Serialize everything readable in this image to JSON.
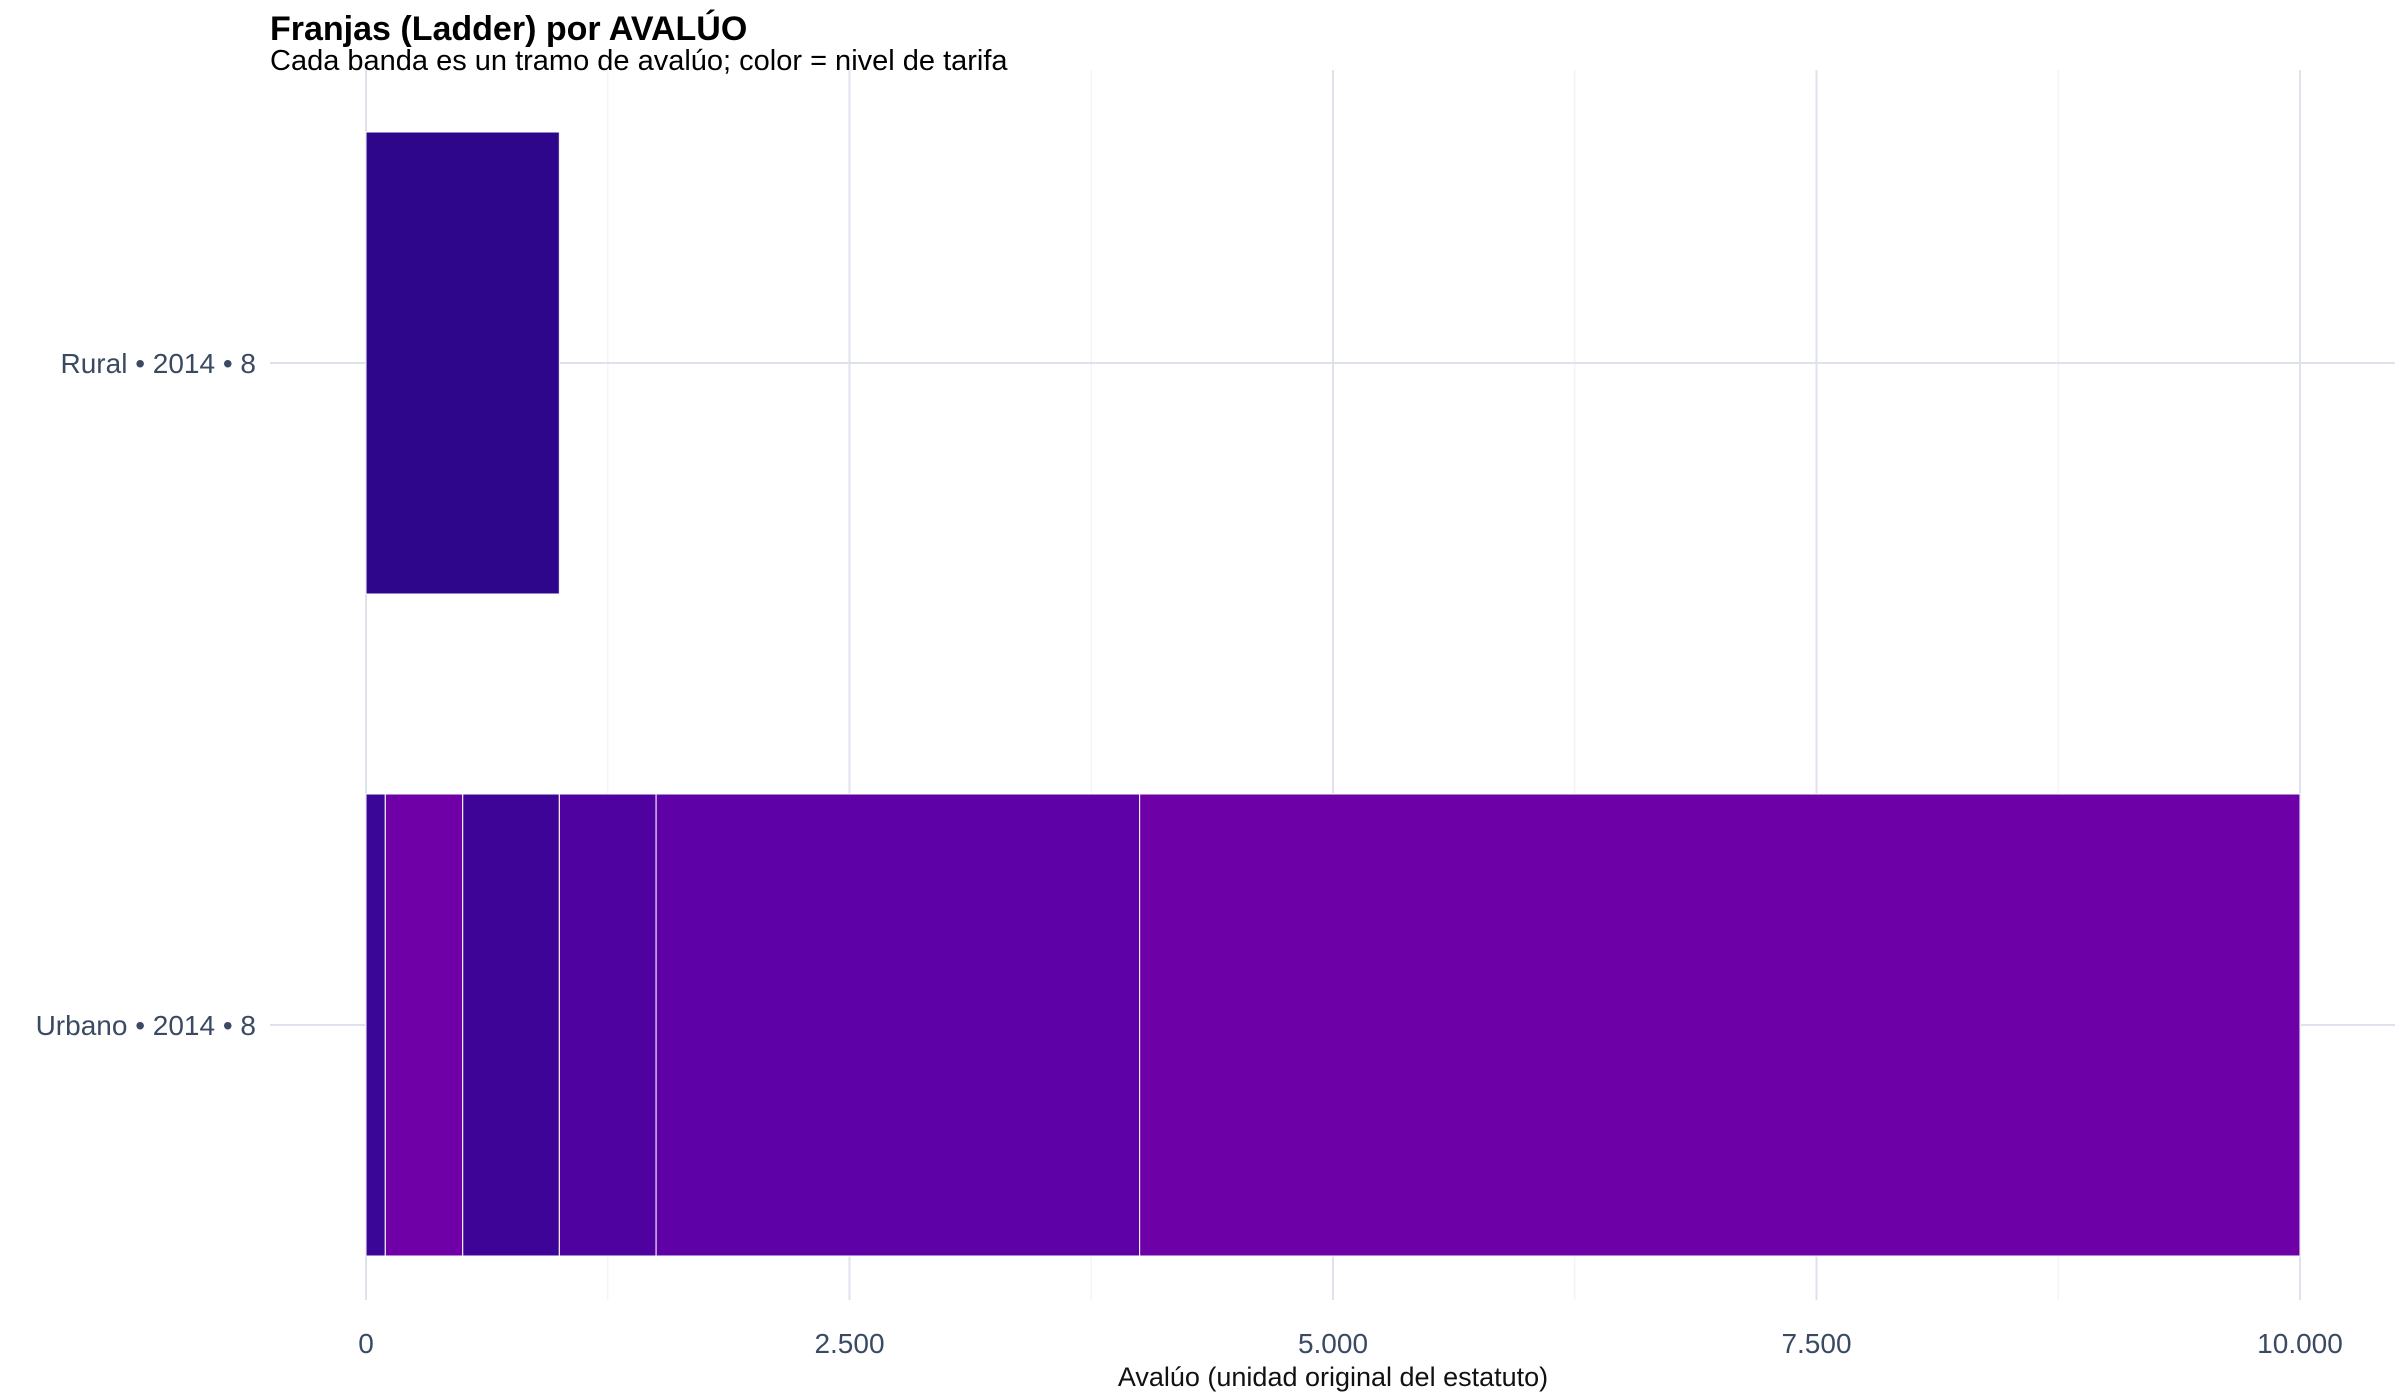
{
  "chart_data": {
    "type": "bar",
    "orientation": "horizontal-stacked",
    "title": "Franjas (Ladder) por AVALÚO",
    "subtitle": "Cada banda es un tramo de avalúo; color = nivel de tarifa",
    "xlabel": "Avalúo (unidad original del estatuto)",
    "ylabel": "",
    "xlim": [
      -250,
      10500
    ],
    "xticks": [
      0,
      2500,
      5000,
      7500,
      10000
    ],
    "xtick_labels": [
      "0",
      "2.500",
      "5.000",
      "7.500",
      "10.000"
    ],
    "grid": true,
    "legend": "none",
    "categories": [
      "Rural • 2014 • 8",
      "Urbano • 2014 • 8"
    ],
    "bands": [
      {
        "category": "Rural • 2014 • 8",
        "from": 0,
        "to": 1000,
        "color": "#2e068c"
      },
      {
        "category": "Urbano • 2014 • 8",
        "from": 0,
        "to": 100,
        "color": "#3a0698"
      },
      {
        "category": "Urbano • 2014 • 8",
        "from": 100,
        "to": 500,
        "color": "#6f00a8"
      },
      {
        "category": "Urbano • 2014 • 8",
        "from": 500,
        "to": 1000,
        "color": "#3e0497"
      },
      {
        "category": "Urbano • 2014 • 8",
        "from": 1000,
        "to": 1500,
        "color": "#5002a0"
      },
      {
        "category": "Urbano • 2014 • 8",
        "from": 1500,
        "to": 4000,
        "color": "#5e01a6"
      },
      {
        "category": "Urbano • 2014 • 8",
        "from": 4000,
        "to": 10000,
        "color": "#6e00a8"
      }
    ]
  }
}
